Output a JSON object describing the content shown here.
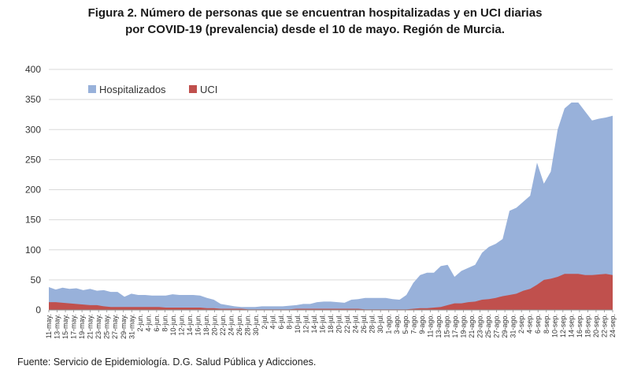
{
  "title_line1": "Figura 2. Número de personas que se encuentran hospitalizadas y en UCI diarias",
  "title_line2": "por COVID-19 (prevalencia) desde el 10 de mayo. Región de Murcia.",
  "source": "Fuente: Servicio de Epidemiología. D.G. Salud Pública y Adicciones.",
  "colors": {
    "hospitalizados": "#98b1da",
    "uci": "#c0504d"
  },
  "chart_data": {
    "type": "area",
    "title": "Figura 2. Número de personas que se encuentran hospitalizadas y en UCI diarias por COVID-19 (prevalencia) desde el 10 de mayo. Región de Murcia.",
    "ylim": [
      0,
      400
    ],
    "yticks": [
      0,
      50,
      100,
      150,
      200,
      250,
      300,
      350,
      400
    ],
    "grid": true,
    "legend_position": "top-left",
    "x_tick_labels": [
      "11-may.",
      "13-may.",
      "15-may.",
      "17-may.",
      "19-may.",
      "21-may.",
      "23-may.",
      "25-may.",
      "27-may.",
      "29-may.",
      "31-may.",
      "2-jun.",
      "4-jun.",
      "6-jun.",
      "8-jun.",
      "10-jun.",
      "12-jun.",
      "14-jun.",
      "16-jun.",
      "18-jun.",
      "20-jun.",
      "22-jun.",
      "24-jun.",
      "26-jun.",
      "28-jun.",
      "30-jun.",
      "2-jul.",
      "4-jul.",
      "6-jul.",
      "8-jul.",
      "10-jul.",
      "12-jul.",
      "14-jul.",
      "16-jul.",
      "18-jul.",
      "20-jul.",
      "22-jul.",
      "24-jul.",
      "26-jul.",
      "28-jul.",
      "30-jul.",
      "1-ago.",
      "3-ago.",
      "5-ago.",
      "7-ago.",
      "9-ago.",
      "11-ago.",
      "13-ago.",
      "15-ago.",
      "17-ago.",
      "19-ago.",
      "21-ago.",
      "23-ago.",
      "25-ago.",
      "27-ago.",
      "29-ago.",
      "31-ago.",
      "2-sep.",
      "4-sep.",
      "6-sep.",
      "8-sep.",
      "10-sep.",
      "12-sep.",
      "14-sep.",
      "16-sep.",
      "18-sep.",
      "20-sep.",
      "22-sep.",
      "24-sep."
    ],
    "series": [
      {
        "name": "Hospitalizados",
        "values": [
          38,
          34,
          37,
          35,
          36,
          33,
          35,
          32,
          33,
          30,
          30,
          22,
          27,
          25,
          25,
          24,
          24,
          24,
          26,
          25,
          25,
          25,
          24,
          20,
          17,
          10,
          8,
          6,
          5,
          5,
          5,
          6,
          6,
          6,
          6,
          7,
          8,
          10,
          10,
          13,
          14,
          14,
          13,
          12,
          17,
          18,
          20,
          20,
          20,
          20,
          18,
          17,
          25,
          45,
          58,
          62,
          62,
          73,
          75,
          55,
          65,
          70,
          75,
          95,
          105,
          110,
          118,
          165,
          170,
          180,
          190,
          245,
          210,
          230,
          300,
          335,
          345,
          345,
          330,
          315,
          318,
          320,
          323
        ]
      },
      {
        "name": "UCI",
        "values": [
          13,
          13,
          12,
          11,
          10,
          9,
          8,
          8,
          6,
          5,
          5,
          5,
          5,
          5,
          5,
          5,
          5,
          4,
          4,
          4,
          4,
          4,
          4,
          3,
          3,
          2,
          2,
          2,
          2,
          1,
          1,
          1,
          1,
          1,
          1,
          1,
          2,
          2,
          2,
          2,
          2,
          2,
          2,
          2,
          2,
          2,
          1,
          1,
          1,
          1,
          1,
          1,
          1,
          2,
          3,
          3,
          4,
          5,
          8,
          11,
          11,
          13,
          14,
          17,
          18,
          20,
          23,
          25,
          27,
          32,
          35,
          42,
          50,
          52,
          55,
          60,
          60,
          60,
          58,
          58,
          59,
          60,
          58
        ]
      }
    ]
  }
}
